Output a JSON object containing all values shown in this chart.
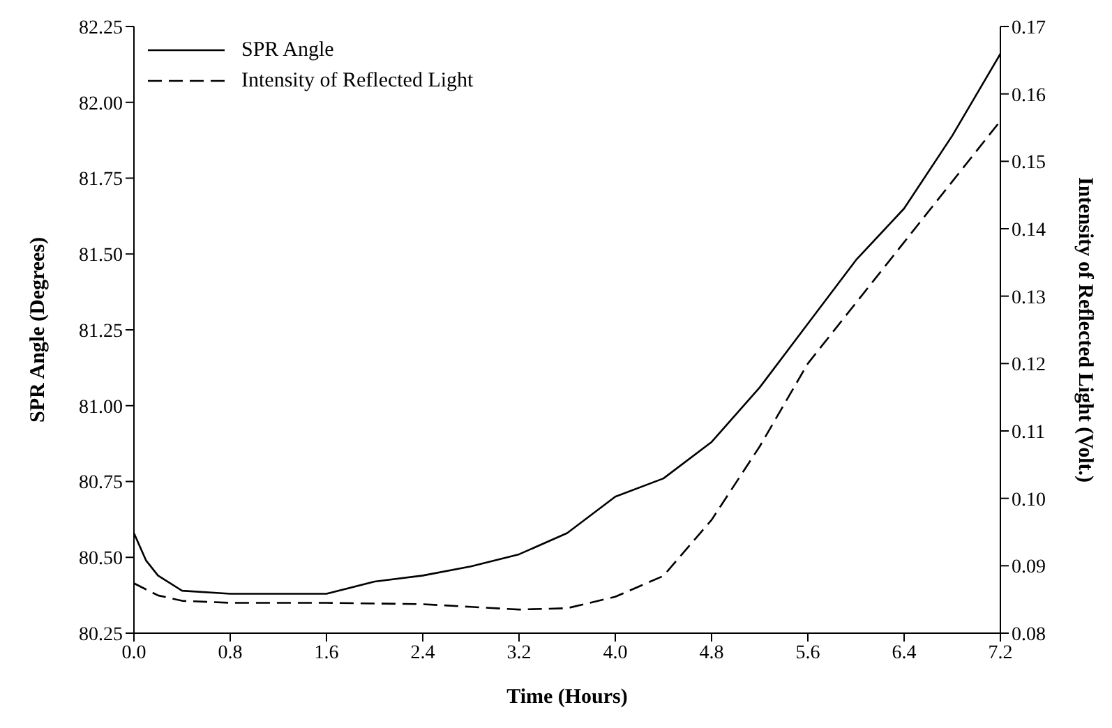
{
  "chart_data": {
    "type": "line",
    "xlabel": "Time (Hours)",
    "ylabel": "SPR Angle (Degrees)",
    "y2label": "Intensity of Reflected Light (Volt.)",
    "xlim": [
      0,
      7.2
    ],
    "xticks": [
      {
        "value": 0,
        "label": "0.0"
      },
      0.8,
      1.6,
      2.4,
      3.2,
      {
        "value": 4,
        "label": "4.0"
      },
      4.8,
      5.6,
      6.4,
      7.2
    ],
    "ylim": [
      80.25,
      82.25
    ],
    "yticks": [
      80.25,
      {
        "value": 80.5,
        "label": "80.50"
      },
      80.75,
      {
        "value": 81,
        "label": "81.00"
      },
      81.25,
      {
        "value": 81.5,
        "label": "81.50"
      },
      81.75,
      {
        "value": 82,
        "label": "82.00"
      },
      82.25
    ],
    "y2lim": [
      0.08,
      0.17
    ],
    "y2ticks": [
      0.08,
      0.09,
      {
        "value": 0.1,
        "label": "0.10"
      },
      0.11,
      0.12,
      0.13,
      0.14,
      0.15,
      0.16,
      0.17
    ],
    "grid": false,
    "legend": "top left",
    "marker": "none",
    "series": [
      {
        "name": "SPR Angle",
        "color": "#000000",
        "line_style": "solid",
        "x": [
          0,
          0.1,
          0.2,
          0.4,
          0.8,
          1.2,
          1.6,
          2.0,
          2.4,
          2.8,
          3.2,
          3.6,
          4.0,
          4.4,
          4.8,
          5.2,
          5.6,
          6.0,
          6.4,
          6.8,
          7.2
        ],
        "values": [
          80.58,
          80.49,
          80.44,
          80.39,
          80.38,
          80.38,
          80.38,
          80.42,
          80.44,
          80.47,
          80.51,
          80.58,
          80.7,
          80.76,
          80.88,
          81.06,
          81.27,
          81.48,
          81.65,
          81.89,
          82.16
        ]
      },
      {
        "name": "Intensity of Reflected Light",
        "color": "#000000",
        "line_style": "dashed",
        "axis": "y2",
        "x": [
          0,
          0.2,
          0.4,
          0.8,
          1.6,
          2.4,
          2.8,
          3.2,
          3.6,
          4.0,
          4.4,
          4.8,
          5.2,
          5.6,
          6.0,
          6.4,
          6.8,
          7.2
        ],
        "values": [
          0.0874,
          0.0856,
          0.0848,
          0.0845,
          0.0845,
          0.0843,
          0.0839,
          0.0835,
          0.0837,
          0.0854,
          0.0885,
          0.0968,
          0.1077,
          0.12,
          0.129,
          0.138,
          0.147,
          0.156
        ]
      }
    ]
  }
}
